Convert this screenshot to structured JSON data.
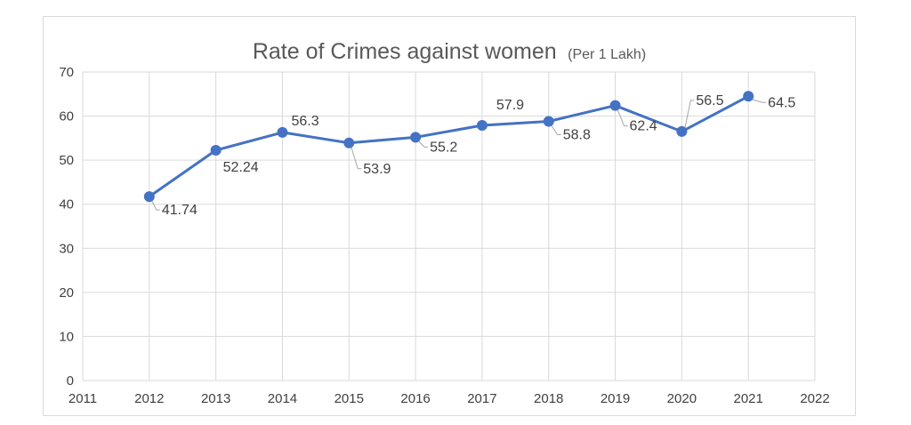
{
  "chart_data": {
    "type": "scatter",
    "title": "Rate of Crimes against women",
    "subtitle": "(Per 1 Lakh)",
    "x": [
      2012,
      2013,
      2014,
      2015,
      2016,
      2017,
      2018,
      2019,
      2020,
      2021
    ],
    "values": [
      41.74,
      52.24,
      56.3,
      53.9,
      55.2,
      57.9,
      58.8,
      62.4,
      56.5,
      64.5
    ],
    "data_labels": [
      "41.74",
      "52.24",
      "56.3",
      "53.9",
      "55.2",
      "57.9",
      "58.8",
      "62.4",
      "56.5",
      "64.5"
    ],
    "xlim": [
      2011,
      2022
    ],
    "ylim": [
      0,
      70
    ],
    "x_ticks": [
      "2011",
      "2012",
      "2013",
      "2014",
      "2015",
      "2016",
      "2017",
      "2018",
      "2019",
      "2020",
      "2021",
      "2022"
    ],
    "y_ticks": [
      "0",
      "10",
      "20",
      "30",
      "40",
      "50",
      "60",
      "70"
    ],
    "grid": true,
    "line_color": "#4472c4",
    "grid_color": "#d9d9d9",
    "leader_color": "#a6a6a6"
  }
}
